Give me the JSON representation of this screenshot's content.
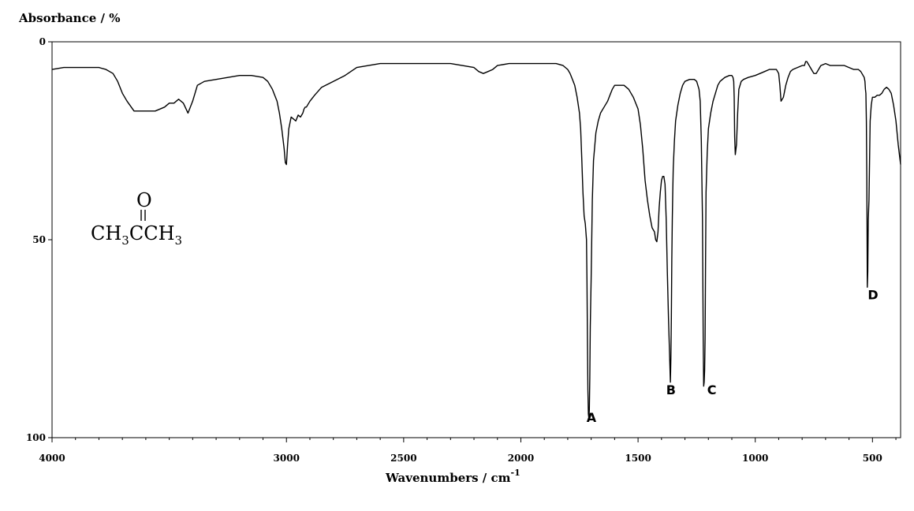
{
  "chart_data": {
    "type": "line",
    "ylabel": "Absorbance / %",
    "xlabel_main": "Wavenumbers / cm",
    "xlabel_sup": "-1",
    "xlim": [
      4000,
      380
    ],
    "ylim": [
      0,
      100
    ],
    "y_inverted": true,
    "xticks": [
      4000,
      3000,
      2500,
      2000,
      1500,
      1000,
      500
    ],
    "yticks": [
      0,
      50,
      100
    ],
    "grid": false,
    "legend": "none",
    "line_color": "#000000",
    "series": [
      {
        "x": [
          4000,
          3950,
          3900,
          3850,
          3800,
          3770,
          3740,
          3720,
          3700,
          3680,
          3650,
          3600,
          3560,
          3520,
          3500,
          3480,
          3460,
          3440,
          3420,
          3400,
          3380,
          3350,
          3300,
          3250,
          3200,
          3150,
          3100,
          3080,
          3060,
          3040,
          3030,
          3020,
          3010,
          3005,
          3000,
          2995,
          2990,
          2980,
          2970,
          2960,
          2950,
          2940,
          2930,
          2925,
          2920,
          2915,
          2910,
          2900,
          2880,
          2850,
          2800,
          2750,
          2700,
          2650,
          2600,
          2550,
          2500,
          2450,
          2400,
          2350,
          2300,
          2250,
          2200,
          2180,
          2160,
          2140,
          2120,
          2100,
          2050,
          2000,
          1950,
          1900,
          1850,
          1820,
          1800,
          1790,
          1780,
          1770,
          1760,
          1750,
          1745,
          1740,
          1735,
          1730,
          1725,
          1720,
          1718,
          1716,
          1714,
          1712,
          1710,
          1708,
          1706,
          1704,
          1700,
          1695,
          1690,
          1680,
          1670,
          1660,
          1650,
          1640,
          1630,
          1620,
          1610,
          1600,
          1580,
          1560,
          1540,
          1520,
          1500,
          1490,
          1480,
          1470,
          1460,
          1450,
          1440,
          1430,
          1425,
          1420,
          1415,
          1410,
          1405,
          1400,
          1395,
          1390,
          1385,
          1380,
          1375,
          1370,
          1365,
          1362,
          1360,
          1358,
          1356,
          1354,
          1352,
          1350,
          1345,
          1340,
          1330,
          1320,
          1310,
          1300,
          1280,
          1260,
          1250,
          1240,
          1235,
          1230,
          1225,
          1222,
          1220,
          1218,
          1216,
          1214,
          1212,
          1210,
          1205,
          1200,
          1190,
          1180,
          1170,
          1160,
          1150,
          1130,
          1110,
          1100,
          1095,
          1092,
          1090,
          1088,
          1085,
          1080,
          1075,
          1070,
          1060,
          1050,
          1030,
          1000,
          980,
          960,
          940,
          920,
          910,
          905,
          900,
          895,
          890,
          880,
          870,
          860,
          850,
          840,
          820,
          800,
          790,
          785,
          780,
          770,
          760,
          750,
          740,
          720,
          700,
          680,
          650,
          620,
          600,
          580,
          560,
          550,
          545,
          540,
          535,
          532,
          530,
          528,
          526,
          524,
          522,
          520,
          518,
          515,
          512,
          510,
          505,
          500,
          490,
          480,
          470,
          460,
          450,
          440,
          430,
          420,
          410,
          400,
          390,
          380
        ],
        "y": [
          7,
          6.5,
          6.5,
          6.5,
          6.5,
          7,
          8,
          10,
          13,
          15,
          17.5,
          17.5,
          17.5,
          16.5,
          15.5,
          15.5,
          14.5,
          15.5,
          18,
          15,
          11,
          10,
          9.5,
          9,
          8.5,
          8.5,
          9,
          10,
          12,
          15,
          18,
          22,
          27,
          30.5,
          31,
          26,
          22,
          19,
          19.5,
          20,
          18.5,
          19,
          18,
          17,
          16.5,
          16.5,
          16,
          15,
          13.5,
          11.5,
          10,
          8.5,
          6.5,
          6,
          5.5,
          5.5,
          5.5,
          5.5,
          5.5,
          5.5,
          5.5,
          6,
          6.5,
          7.5,
          8,
          7.5,
          7,
          6,
          5.5,
          5.5,
          5.5,
          5.5,
          5.5,
          6,
          7,
          8,
          9.5,
          11,
          14,
          18,
          22,
          30,
          38,
          44,
          46,
          50,
          60,
          75,
          88,
          94,
          95,
          93,
          85,
          72,
          60,
          40,
          30,
          23,
          20,
          18,
          17,
          16,
          15,
          13.5,
          12,
          11,
          11,
          11,
          12,
          14,
          17,
          21,
          27,
          35,
          40,
          44,
          47,
          48,
          50,
          50.5,
          48,
          42,
          38,
          35,
          34,
          34,
          36,
          45,
          58,
          70,
          80,
          86,
          80,
          70,
          55,
          45,
          38,
          32,
          25,
          20,
          16,
          13,
          11,
          10,
          9.5,
          9.5,
          10,
          12,
          15,
          25,
          45,
          75,
          87,
          86,
          83,
          75,
          55,
          38,
          28,
          22,
          18,
          15,
          13,
          11,
          10,
          9,
          8.5,
          8.5,
          9,
          10,
          14,
          24,
          28.5,
          26,
          18,
          12,
          10,
          9.5,
          9,
          8.5,
          8,
          7.5,
          7,
          7,
          7,
          7.5,
          8,
          11,
          15,
          14,
          11,
          9,
          7.5,
          7,
          6.5,
          6,
          6,
          5,
          5,
          6,
          7,
          8,
          8,
          6,
          5.5,
          6,
          6,
          6,
          6.5,
          7,
          7,
          7.5,
          8,
          8.5,
          9,
          10,
          12,
          13,
          20,
          35,
          62,
          58,
          45,
          40,
          28,
          20,
          16,
          14,
          14,
          13.5,
          13.5,
          13,
          12,
          11.5,
          12,
          13,
          16,
          20,
          26,
          31
        ]
      }
    ],
    "annotations": [
      {
        "text": "A",
        "x": 1720,
        "y": 96
      },
      {
        "text": "B",
        "x": 1380,
        "y": 89
      },
      {
        "text": "C",
        "x": 1205,
        "y": 89
      },
      {
        "text": "D",
        "x": 520,
        "y": 65
      }
    ]
  },
  "molecule": {
    "oxygen": "O",
    "part1": "CH",
    "sub1": "3",
    "part2": "CCH",
    "sub2": "3"
  }
}
